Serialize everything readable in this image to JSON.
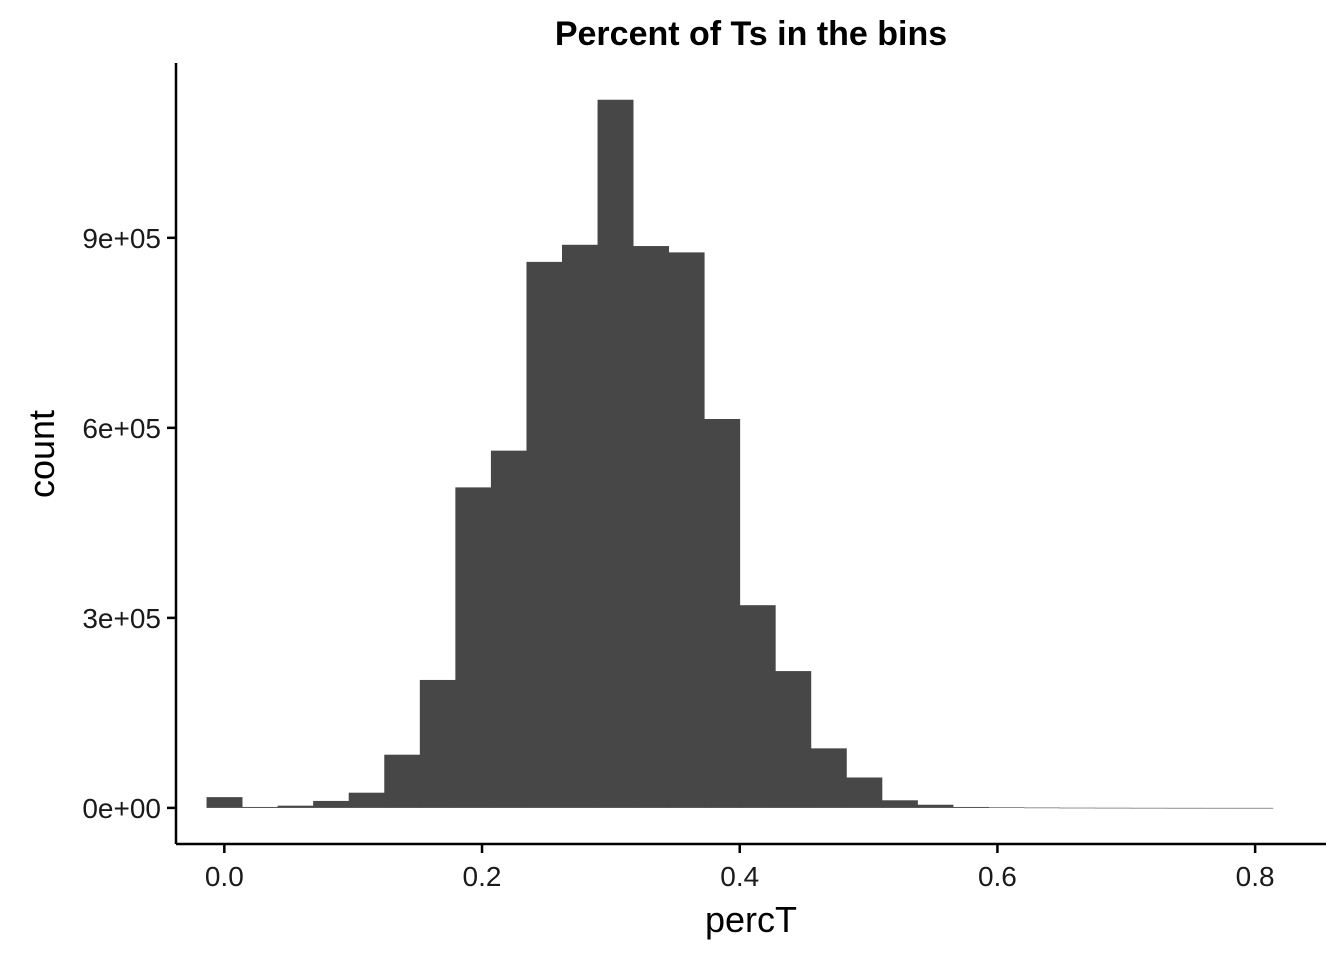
{
  "chart_data": {
    "type": "bar",
    "title": "Percent of Ts in the bins",
    "xlabel": "percT",
    "ylabel": "count",
    "bar_color": "#474747",
    "background": "#ffffff",
    "grid": false,
    "legend": "none",
    "xlim": [
      -0.0375,
      0.855
    ],
    "ylim": [
      -57000,
      1176000
    ],
    "x_ticks": [
      0.0,
      0.2,
      0.4,
      0.6,
      0.8
    ],
    "x_tick_labels": [
      "0.0",
      "0.2",
      "0.4",
      "0.6",
      "0.8"
    ],
    "y_ticks": [
      0,
      300000,
      600000,
      900000
    ],
    "y_tick_labels": [
      "0e+00",
      "3e+05",
      "6e+05",
      "9e+05"
    ],
    "bin_width": 0.02759,
    "bins": [
      {
        "x": 0.0,
        "count": 17000
      },
      {
        "x": 0.02759,
        "count": 1500
      },
      {
        "x": 0.05517,
        "count": 3500
      },
      {
        "x": 0.08276,
        "count": 11000
      },
      {
        "x": 0.11034,
        "count": 24000
      },
      {
        "x": 0.13793,
        "count": 84000
      },
      {
        "x": 0.16552,
        "count": 202000
      },
      {
        "x": 0.1931,
        "count": 506000
      },
      {
        "x": 0.22069,
        "count": 564000
      },
      {
        "x": 0.24828,
        "count": 862000
      },
      {
        "x": 0.27586,
        "count": 889000
      },
      {
        "x": 0.30345,
        "count": 1118000
      },
      {
        "x": 0.33103,
        "count": 887000
      },
      {
        "x": 0.35862,
        "count": 877000
      },
      {
        "x": 0.38621,
        "count": 614000
      },
      {
        "x": 0.41379,
        "count": 320000
      },
      {
        "x": 0.44138,
        "count": 216000
      },
      {
        "x": 0.46897,
        "count": 94000
      },
      {
        "x": 0.49655,
        "count": 48000
      },
      {
        "x": 0.52414,
        "count": 12000
      },
      {
        "x": 0.55172,
        "count": 5000
      },
      {
        "x": 0.57931,
        "count": 1500
      },
      {
        "x": 0.6069,
        "count": 800
      },
      {
        "x": 0.63448,
        "count": 500
      },
      {
        "x": 0.66207,
        "count": 300
      },
      {
        "x": 0.68966,
        "count": 200
      },
      {
        "x": 0.71724,
        "count": 100
      },
      {
        "x": 0.74483,
        "count": 50
      },
      {
        "x": 0.77241,
        "count": 20
      },
      {
        "x": 0.8,
        "count": 10
      }
    ]
  }
}
